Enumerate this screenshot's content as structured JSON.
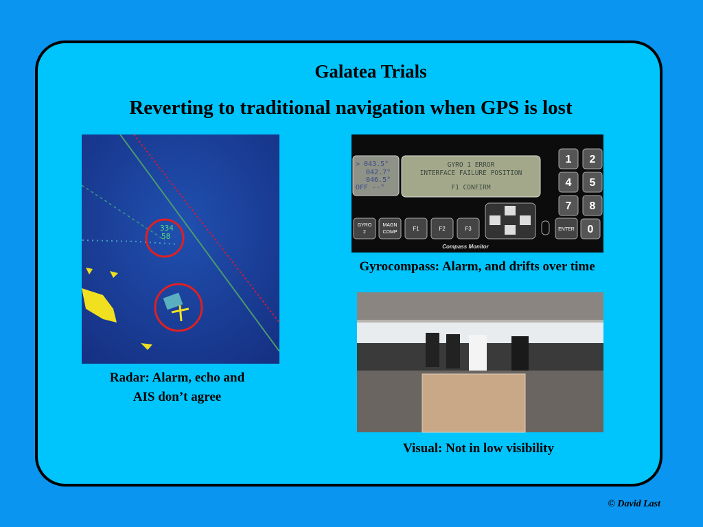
{
  "header": {
    "title": "Galatea Trials",
    "subtitle": "Reverting to traditional navigation when GPS is lost"
  },
  "radar": {
    "caption": [
      "Radar: Alarm, echo and",
      "AIS don’t agree"
    ],
    "labels": [
      "334",
      "58"
    ]
  },
  "gyro": {
    "caption": "Gyrocompass: Alarm, and drifts over time",
    "readings": [
      "> 043.5°",
      "042.7°",
      "046.5°",
      "OFF   --°"
    ],
    "message": [
      "GYRO 1 ERROR",
      "INTERFACE FAILURE POSITION",
      "F1 CONFIRM"
    ],
    "buttons": [
      [
        "GYRO",
        "2"
      ],
      [
        "MAGN",
        "COMP"
      ],
      [
        "F1"
      ],
      [
        "F2"
      ],
      [
        "F3"
      ],
      [
        "ENTER"
      ]
    ],
    "keys": [
      "1",
      "2",
      "4",
      "5",
      "7",
      "8",
      "0"
    ],
    "brand": "Compass Monitor"
  },
  "visual": {
    "caption": "Visual: Not in low visibility"
  },
  "footer": "© David Last"
}
